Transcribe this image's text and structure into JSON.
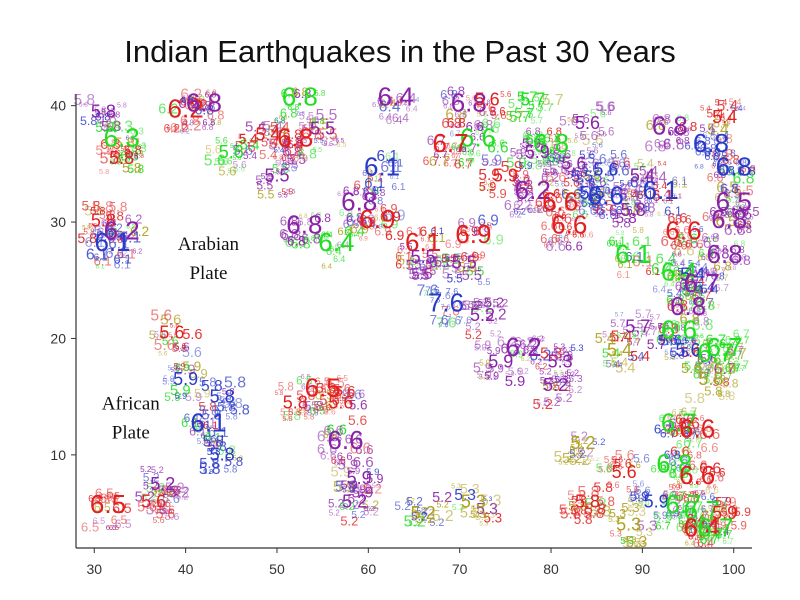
{
  "chart_data": {
    "type": "scatter",
    "title": "Indian Earthquakes in the Past 30 Years",
    "xlim": [
      28,
      102
    ],
    "ylim": [
      2,
      41
    ],
    "xticks": [
      "30",
      "40",
      "50",
      "60",
      "70",
      "80",
      "90",
      "100"
    ],
    "yticks": [
      "10",
      "20",
      "30",
      "40"
    ],
    "grid": false,
    "annotations": [
      {
        "text": "Arabian",
        "x": 42.5,
        "y": 27.6
      },
      {
        "text": "Plate",
        "x": 42.5,
        "y": 25.1
      },
      {
        "text": "African",
        "x": 34.0,
        "y": 13.9
      },
      {
        "text": "Plate",
        "x": 34.0,
        "y": 11.4
      }
    ],
    "colors": {
      "red": "#e02020",
      "purple": "#8a22a8",
      "green": "#22dd22",
      "blue": "#2a3ac8",
      "olive": "#b0a020"
    },
    "points": [
      {
        "x": 68.5,
        "y": 22.3,
        "mag": "7.6",
        "color": "blue"
      },
      {
        "x": 71.5,
        "y": 28.2,
        "mag": "6.9",
        "color": "red"
      },
      {
        "x": 59.0,
        "y": 31.0,
        "mag": "6.8",
        "color": "purple"
      },
      {
        "x": 61.5,
        "y": 34.0,
        "mag": "6.1",
        "color": "blue"
      },
      {
        "x": 63.0,
        "y": 40.0,
        "mag": "6.4",
        "color": "purple"
      },
      {
        "x": 52.0,
        "y": 36.5,
        "mag": "6.8",
        "color": "red"
      },
      {
        "x": 52.5,
        "y": 40.0,
        "mag": "6.8",
        "color": "green"
      },
      {
        "x": 40.0,
        "y": 39.0,
        "mag": "6.2",
        "color": "red"
      },
      {
        "x": 42.0,
        "y": 39.5,
        "mag": "6.8",
        "color": "purple"
      },
      {
        "x": 31.0,
        "y": 39.0,
        "mag": "5.8",
        "color": "purple"
      },
      {
        "x": 33.0,
        "y": 36.5,
        "mag": "6.3",
        "color": "green"
      },
      {
        "x": 33.0,
        "y": 35.0,
        "mag": "5.8",
        "color": "red"
      },
      {
        "x": 31.0,
        "y": 29.6,
        "mag": "5.8",
        "color": "red"
      },
      {
        "x": 33.0,
        "y": 28.5,
        "mag": "6.2",
        "color": "purple"
      },
      {
        "x": 32.0,
        "y": 27.5,
        "mag": "6.1",
        "color": "blue"
      },
      {
        "x": 71.0,
        "y": 39.5,
        "mag": "6.8",
        "color": "purple"
      },
      {
        "x": 72.0,
        "y": 36.5,
        "mag": "6.6",
        "color": "green"
      },
      {
        "x": 69.0,
        "y": 36.0,
        "mag": "6.7",
        "color": "red"
      },
      {
        "x": 80.0,
        "y": 36.0,
        "mag": "6.8",
        "color": "green"
      },
      {
        "x": 78.5,
        "y": 35.5,
        "mag": "5.9",
        "color": "purple"
      },
      {
        "x": 75.0,
        "y": 33.5,
        "mag": "5.9",
        "color": "red"
      },
      {
        "x": 78.0,
        "y": 32.0,
        "mag": "6.2",
        "color": "purple"
      },
      {
        "x": 81.0,
        "y": 31.0,
        "mag": "6.6",
        "color": "red"
      },
      {
        "x": 82.0,
        "y": 29.0,
        "mag": "6.6",
        "color": "red"
      },
      {
        "x": 86.0,
        "y": 31.5,
        "mag": "6.6",
        "color": "blue"
      },
      {
        "x": 92.0,
        "y": 32.0,
        "mag": "6.1",
        "color": "blue"
      },
      {
        "x": 89.0,
        "y": 30.5,
        "mag": "5.8",
        "color": "purple"
      },
      {
        "x": 94.5,
        "y": 28.5,
        "mag": "6.6",
        "color": "red"
      },
      {
        "x": 89.0,
        "y": 26.5,
        "mag": "6.1",
        "color": "green"
      },
      {
        "x": 94.0,
        "y": 25.0,
        "mag": "6.4",
        "color": "green"
      },
      {
        "x": 95.5,
        "y": 25.0,
        "mag": "5.4",
        "color": "blue"
      },
      {
        "x": 96.5,
        "y": 24.0,
        "mag": "6.7",
        "color": "purple"
      },
      {
        "x": 99.0,
        "y": 26.5,
        "mag": "6.8",
        "color": "purple"
      },
      {
        "x": 99.5,
        "y": 29.5,
        "mag": "6.8",
        "color": "purple"
      },
      {
        "x": 100.0,
        "y": 31.0,
        "mag": "6.5",
        "color": "purple"
      },
      {
        "x": 100.0,
        "y": 34.0,
        "mag": "6.8",
        "color": "blue"
      },
      {
        "x": 97.5,
        "y": 36.0,
        "mag": "6.8",
        "color": "blue"
      },
      {
        "x": 93.0,
        "y": 37.5,
        "mag": "6.8",
        "color": "purple"
      },
      {
        "x": 99.0,
        "y": 38.5,
        "mag": "5.4",
        "color": "red"
      },
      {
        "x": 95.0,
        "y": 22.0,
        "mag": "6.8",
        "color": "purple"
      },
      {
        "x": 94.0,
        "y": 20.0,
        "mag": "6.6",
        "color": "green"
      },
      {
        "x": 95.0,
        "y": 18.5,
        "mag": "5.6",
        "color": "blue"
      },
      {
        "x": 98.0,
        "y": 18.0,
        "mag": "6.7",
        "color": "green"
      },
      {
        "x": 99.0,
        "y": 18.5,
        "mag": "6.7",
        "color": "green"
      },
      {
        "x": 97.5,
        "y": 16.0,
        "mag": "5.8",
        "color": "olive"
      },
      {
        "x": 89.5,
        "y": 20.5,
        "mag": "5.7",
        "color": "purple"
      },
      {
        "x": 87.5,
        "y": 18.5,
        "mag": "5.4",
        "color": "olive"
      },
      {
        "x": 77.0,
        "y": 18.5,
        "mag": "6.2",
        "color": "purple"
      },
      {
        "x": 74.5,
        "y": 17.5,
        "mag": "5.9",
        "color": "purple"
      },
      {
        "x": 94.0,
        "y": 12.0,
        "mag": "6.7",
        "color": "green"
      },
      {
        "x": 96.0,
        "y": 11.5,
        "mag": "6.6",
        "color": "red"
      },
      {
        "x": 93.5,
        "y": 8.5,
        "mag": "6.8",
        "color": "green"
      },
      {
        "x": 96.0,
        "y": 7.5,
        "mag": "6.6",
        "color": "red"
      },
      {
        "x": 91.5,
        "y": 5.5,
        "mag": "5.9",
        "color": "blue"
      },
      {
        "x": 94.5,
        "y": 5.0,
        "mag": "6.7",
        "color": "green"
      },
      {
        "x": 96.5,
        "y": 4.5,
        "mag": "6.7",
        "color": "green"
      },
      {
        "x": 99.0,
        "y": 4.5,
        "mag": "5.9",
        "color": "red"
      },
      {
        "x": 96.5,
        "y": 3.0,
        "mag": "6.4",
        "color": "red"
      },
      {
        "x": 98.0,
        "y": 3.0,
        "mag": "6.7",
        "color": "green"
      },
      {
        "x": 88.0,
        "y": 8.0,
        "mag": "5.6",
        "color": "red"
      },
      {
        "x": 84.0,
        "y": 5.5,
        "mag": "5.8",
        "color": "red"
      },
      {
        "x": 83.5,
        "y": 10.5,
        "mag": "5.2",
        "color": "olive"
      },
      {
        "x": 88.5,
        "y": 3.5,
        "mag": "5.3",
        "color": "olive"
      },
      {
        "x": 57.5,
        "y": 10.5,
        "mag": "6.6",
        "color": "purple"
      },
      {
        "x": 59.0,
        "y": 7.5,
        "mag": "5.9",
        "color": "purple"
      },
      {
        "x": 57.0,
        "y": 14.0,
        "mag": "5.6",
        "color": "red"
      },
      {
        "x": 52.0,
        "y": 14.0,
        "mag": "5.8",
        "color": "red"
      },
      {
        "x": 55.0,
        "y": 15.0,
        "mag": "6.5",
        "color": "red"
      },
      {
        "x": 42.5,
        "y": 12.0,
        "mag": "6.1",
        "color": "blue"
      },
      {
        "x": 44.0,
        "y": 14.5,
        "mag": "5.8",
        "color": "blue"
      },
      {
        "x": 40.0,
        "y": 16.0,
        "mag": "5.9",
        "color": "blue"
      },
      {
        "x": 38.5,
        "y": 20.0,
        "mag": "5.6",
        "color": "red"
      },
      {
        "x": 31.5,
        "y": 5.0,
        "mag": "6.5",
        "color": "red"
      },
      {
        "x": 36.5,
        "y": 5.5,
        "mag": "5.6",
        "color": "red"
      },
      {
        "x": 56.5,
        "y": 27.5,
        "mag": "6.4",
        "color": "green"
      },
      {
        "x": 53.0,
        "y": 29.0,
        "mag": "6.8",
        "color": "purple"
      },
      {
        "x": 61.0,
        "y": 29.5,
        "mag": "6.9",
        "color": "red"
      },
      {
        "x": 66.0,
        "y": 27.5,
        "mag": "6.1",
        "color": "red"
      },
      {
        "x": 66.0,
        "y": 26.5,
        "mag": "5.5",
        "color": "purple"
      },
      {
        "x": 50.0,
        "y": 33.5,
        "mag": "5.5",
        "color": "purple"
      },
      {
        "x": 45.0,
        "y": 35.5,
        "mag": "5.6",
        "color": "green"
      },
      {
        "x": 49.0,
        "y": 37.0,
        "mag": "5.4",
        "color": "red"
      },
      {
        "x": 55.0,
        "y": 37.5,
        "mag": "5.5",
        "color": "purple"
      },
      {
        "x": 70.5,
        "y": 26.0,
        "mag": "5.5",
        "color": "purple"
      },
      {
        "x": 72.5,
        "y": 21.5,
        "mag": "5.2",
        "color": "purple"
      },
      {
        "x": 66.0,
        "y": 4.5,
        "mag": "5.2",
        "color": "olive"
      },
      {
        "x": 71.5,
        "y": 5.5,
        "mag": "5.3",
        "color": "olive"
      },
      {
        "x": 58.5,
        "y": 5.5,
        "mag": "5.2",
        "color": "purple"
      },
      {
        "x": 80.5,
        "y": 15.5,
        "mag": "5.2",
        "color": "purple"
      },
      {
        "x": 81.0,
        "y": 17.5,
        "mag": "5.3",
        "color": "purple"
      },
      {
        "x": 44.0,
        "y": 9.5,
        "mag": "5.8",
        "color": "blue"
      },
      {
        "x": 37.5,
        "y": 7.0,
        "mag": "5.2",
        "color": "purple"
      },
      {
        "x": 73.0,
        "y": 40.0,
        "mag": "5.6",
        "color": "red"
      },
      {
        "x": 78.0,
        "y": 40.0,
        "mag": "5.7",
        "color": "green"
      },
      {
        "x": 84.0,
        "y": 38.0,
        "mag": "5.6",
        "color": "purple"
      },
      {
        "x": 86.0,
        "y": 34.0,
        "mag": "5.6",
        "color": "blue"
      },
      {
        "x": 90.0,
        "y": 33.5,
        "mag": "5.4",
        "color": "purple"
      },
      {
        "x": 82.5,
        "y": 34.5,
        "mag": "5.6",
        "color": "purple"
      },
      {
        "x": 84.5,
        "y": 32.0,
        "mag": "5.5",
        "color": "blue"
      }
    ]
  }
}
